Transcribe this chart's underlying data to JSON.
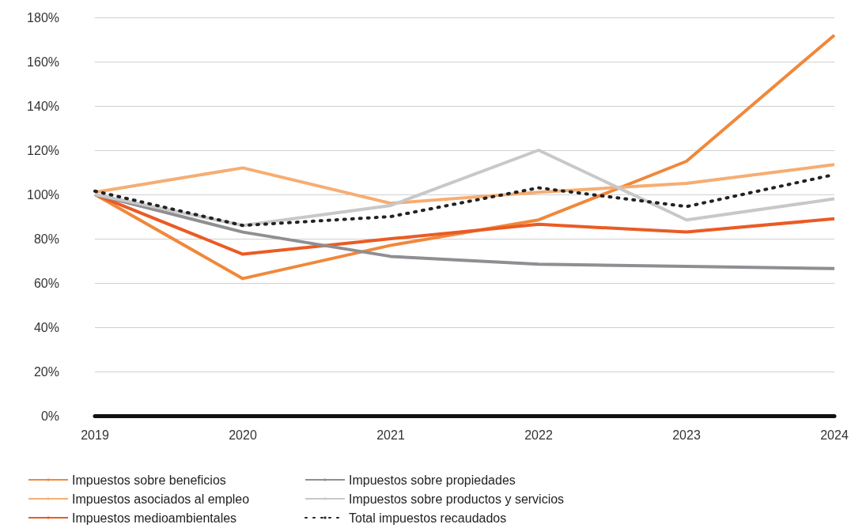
{
  "chart_data": {
    "type": "line",
    "categories": [
      "2019",
      "2020",
      "2021",
      "2022",
      "2023",
      "2024"
    ],
    "series": [
      {
        "name": "Impuestos sobre beneficios",
        "color": "#f0883a",
        "values": [
          100,
          62,
          77,
          88.5,
          115,
          172
        ]
      },
      {
        "name": "Impuestos asociados al empleo",
        "color": "#f6ad72",
        "values": [
          101,
          112,
          96,
          101,
          105,
          113.5
        ]
      },
      {
        "name": "Impuestos medioambientales",
        "color": "#ea5b24",
        "values": [
          100,
          73,
          80,
          86.5,
          83,
          89
        ]
      },
      {
        "name": "Impuestos sobre propiedades",
        "color": "#8e8e93",
        "values": [
          100,
          83,
          72,
          68.5,
          67.5,
          66.5
        ]
      },
      {
        "name": "Impuestos sobre productos y servicios",
        "color": "#c8c8c8",
        "values": [
          100,
          86,
          95,
          120,
          88.5,
          98
        ]
      },
      {
        "name": "Total impuestos recaudados",
        "color": "#222222",
        "line_style": "dotted",
        "values": [
          101.5,
          86,
          90,
          103,
          94.5,
          109
        ]
      }
    ],
    "ylim": [
      0,
      180
    ],
    "yticks": [
      {
        "value": 0,
        "label": "0%"
      },
      {
        "value": 20,
        "label": "20%"
      },
      {
        "value": 40,
        "label": "40%"
      },
      {
        "value": 60,
        "label": "60%"
      },
      {
        "value": 80,
        "label": "80%"
      },
      {
        "value": 100,
        "label": "100%"
      },
      {
        "value": 120,
        "label": "120%"
      },
      {
        "value": 140,
        "label": "140%"
      },
      {
        "value": 160,
        "label": "160%"
      },
      {
        "value": 180,
        "label": "180%"
      }
    ],
    "grid": "y",
    "legend": "bottom left",
    "marker": "none",
    "line_style": "solid"
  }
}
